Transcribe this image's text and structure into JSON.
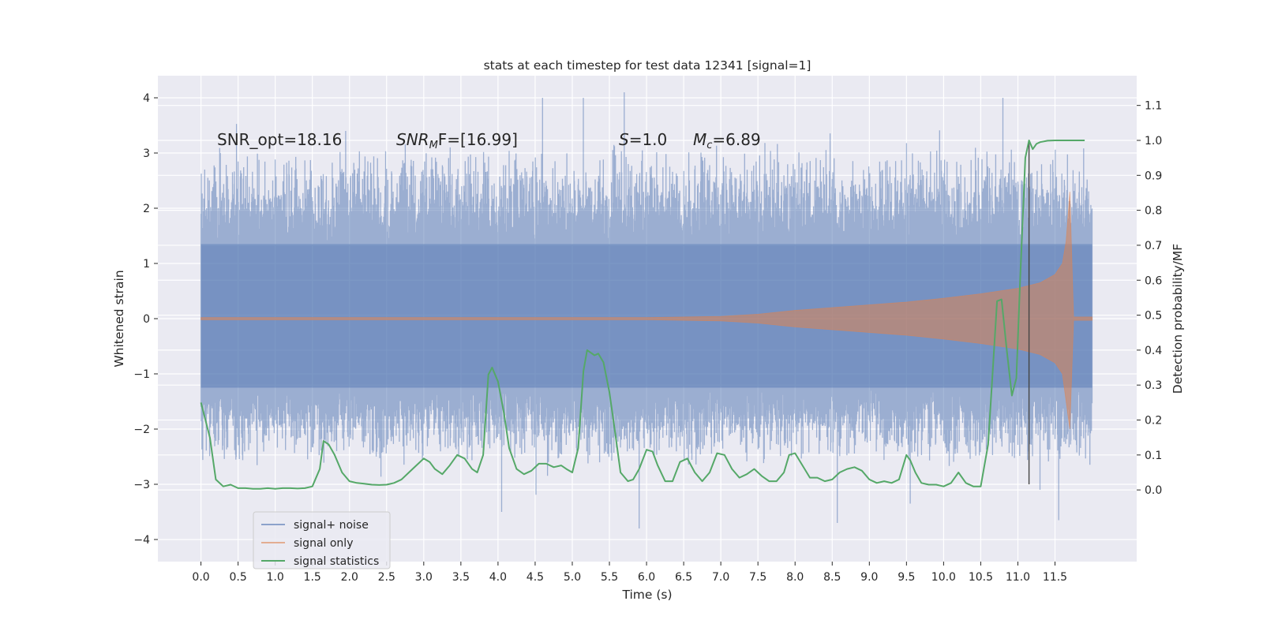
{
  "chart_data": {
    "type": "line",
    "title": "stats at each timestep for test data 12341 [signal=1]",
    "xlabel": "Time (s)",
    "ylabel": "Whitened strain",
    "ylabel_right": "Detection probability/MF",
    "xlim": [
      -0.58,
      12.6
    ],
    "ylim": [
      -4.4,
      4.4
    ],
    "ylim_right": [
      -0.205,
      1.185
    ],
    "x_ticks": [
      0.0,
      0.5,
      1.0,
      1.5,
      2.0,
      2.5,
      3.0,
      3.5,
      4.0,
      4.5,
      5.0,
      5.5,
      6.0,
      6.5,
      7.0,
      7.5,
      8.0,
      8.5,
      9.0,
      9.5,
      10.0,
      10.5,
      11.0,
      11.5
    ],
    "x_tick_labels": [
      "0.0",
      "0.5",
      "1.0",
      "1.5",
      "2.0",
      "2.5",
      "3.0",
      "3.5",
      "4.0",
      "4.5",
      "5.0",
      "5.5",
      "6.0",
      "6.5",
      "7.0",
      "7.5",
      "8.0",
      "8.5",
      "9.0",
      "9.5",
      "10.0",
      "10.5",
      "11.0",
      "11.5"
    ],
    "y_ticks": [
      -4,
      -3,
      -2,
      -1,
      0,
      1,
      2,
      3,
      4
    ],
    "y_tick_labels": [
      "−4",
      "−3",
      "−2",
      "−1",
      "0",
      "1",
      "2",
      "3",
      "4"
    ],
    "y_right_ticks": [
      0.0,
      0.1,
      0.2,
      0.3,
      0.4,
      0.5,
      0.6,
      0.7,
      0.8,
      0.9,
      1.0,
      1.1
    ],
    "y_right_tick_labels": [
      "0.0",
      "0.1",
      "0.2",
      "0.3",
      "0.4",
      "0.5",
      "0.6",
      "0.7",
      "0.8",
      "0.9",
      "1.0",
      "1.1"
    ],
    "grid": true,
    "background": "#eaeaf2",
    "legend": {
      "placement": "lower-left",
      "entries": [
        {
          "label": "signal+ noise",
          "color": "#4c72b0"
        },
        {
          "label": "signal only",
          "color": "#dd8452"
        },
        {
          "label": "signal statistics",
          "color": "#55a868"
        }
      ]
    },
    "annotations": {
      "snr_opt": "SNR_opt=18.16",
      "snr_mf_base": "SNR",
      "snr_mf_sub": "M",
      "snr_mf_tail": "F=[16.99]",
      "s_base": "S",
      "s_tail": "=1.0",
      "mc_base": "M",
      "mc_sub": "c",
      "mc_tail": "=6.89"
    },
    "vline": {
      "x": 11.15,
      "y_top": 3.2,
      "y_bottom": -3.0,
      "color": "#444444"
    },
    "series": [
      {
        "name": "signal+ noise",
        "color": "#4c72b0",
        "x_range": [
          0.0,
          12.0
        ],
        "core_band": [
          -1.25,
          1.35
        ],
        "typical_peak_range": [
          -2.7,
          3.2
        ],
        "max_value": 4.1,
        "min_value": -3.8,
        "note_values": [
          [
            0.05,
            2.7
          ],
          [
            1.95,
            3.4
          ],
          [
            4.6,
            4.0
          ],
          [
            5.15,
            4.0
          ],
          [
            5.7,
            4.1
          ],
          [
            10.8,
            4.0
          ],
          [
            8.57,
            -3.7
          ],
          [
            9.55,
            -3.35
          ],
          [
            11.55,
            -3.65
          ],
          [
            11.3,
            -3.1
          ],
          [
            5.9,
            -3.8
          ],
          [
            4.05,
            -3.5
          ]
        ]
      },
      {
        "name": "signal only",
        "color": "#dd8452",
        "x": [
          0.0,
          6.0,
          7.0,
          7.5,
          8.0,
          8.5,
          9.0,
          9.5,
          10.0,
          10.5,
          11.0,
          11.3,
          11.5,
          11.6,
          11.65,
          11.7,
          11.75,
          12.0
        ],
        "upper": [
          0.02,
          0.02,
          0.04,
          0.08,
          0.15,
          0.2,
          0.25,
          0.3,
          0.37,
          0.45,
          0.55,
          0.65,
          0.8,
          1.0,
          1.4,
          2.3,
          0.03,
          0.03
        ],
        "lower": [
          -0.02,
          -0.02,
          -0.04,
          -0.08,
          -0.15,
          -0.2,
          -0.25,
          -0.3,
          -0.37,
          -0.45,
          -0.55,
          -0.65,
          -0.8,
          -1.0,
          -1.5,
          -2.0,
          -0.03,
          -0.03
        ]
      },
      {
        "name": "signal statistics",
        "color": "#55a868",
        "axis": "right",
        "x": [
          0.0,
          0.12,
          0.2,
          0.3,
          0.4,
          0.5,
          0.6,
          0.7,
          0.8,
          0.9,
          1.0,
          1.1,
          1.2,
          1.3,
          1.4,
          1.5,
          1.6,
          1.65,
          1.72,
          1.8,
          1.9,
          2.0,
          2.1,
          2.2,
          2.3,
          2.4,
          2.5,
          2.6,
          2.7,
          2.8,
          2.9,
          3.0,
          3.08,
          3.15,
          3.25,
          3.35,
          3.45,
          3.55,
          3.65,
          3.72,
          3.8,
          3.87,
          3.92,
          4.0,
          4.08,
          4.15,
          4.25,
          4.35,
          4.45,
          4.55,
          4.65,
          4.75,
          4.85,
          4.92,
          5.0,
          5.08,
          5.15,
          5.2,
          5.3,
          5.35,
          5.42,
          5.5,
          5.58,
          5.65,
          5.75,
          5.82,
          5.9,
          6.0,
          6.08,
          6.15,
          6.25,
          6.35,
          6.45,
          6.55,
          6.65,
          6.75,
          6.85,
          6.95,
          7.05,
          7.15,
          7.25,
          7.35,
          7.45,
          7.55,
          7.65,
          7.75,
          7.85,
          7.92,
          8.0,
          8.1,
          8.2,
          8.3,
          8.4,
          8.5,
          8.6,
          8.7,
          8.8,
          8.9,
          9.0,
          9.1,
          9.2,
          9.3,
          9.4,
          9.5,
          9.55,
          9.62,
          9.7,
          9.8,
          9.9,
          10.0,
          10.1,
          10.2,
          10.3,
          10.4,
          10.5,
          10.6,
          10.65,
          10.72,
          10.78,
          10.85,
          10.92,
          10.98,
          11.03,
          11.1,
          11.15,
          11.2,
          11.25,
          11.3,
          11.4,
          11.5,
          11.6,
          11.75,
          11.9
        ],
        "values": [
          0.25,
          0.15,
          0.03,
          0.01,
          0.015,
          0.005,
          0.005,
          0.003,
          0.003,
          0.005,
          0.003,
          0.005,
          0.005,
          0.004,
          0.005,
          0.01,
          0.06,
          0.14,
          0.13,
          0.1,
          0.05,
          0.025,
          0.02,
          0.018,
          0.015,
          0.014,
          0.015,
          0.02,
          0.03,
          0.05,
          0.07,
          0.09,
          0.08,
          0.06,
          0.045,
          0.07,
          0.1,
          0.09,
          0.06,
          0.05,
          0.1,
          0.33,
          0.35,
          0.31,
          0.22,
          0.12,
          0.06,
          0.045,
          0.055,
          0.075,
          0.075,
          0.065,
          0.07,
          0.06,
          0.05,
          0.12,
          0.34,
          0.4,
          0.385,
          0.39,
          0.365,
          0.28,
          0.16,
          0.05,
          0.025,
          0.03,
          0.06,
          0.115,
          0.11,
          0.07,
          0.025,
          0.025,
          0.08,
          0.09,
          0.05,
          0.025,
          0.05,
          0.105,
          0.1,
          0.06,
          0.035,
          0.045,
          0.06,
          0.04,
          0.025,
          0.025,
          0.05,
          0.1,
          0.105,
          0.07,
          0.035,
          0.035,
          0.025,
          0.03,
          0.05,
          0.06,
          0.065,
          0.055,
          0.03,
          0.02,
          0.025,
          0.02,
          0.03,
          0.1,
          0.085,
          0.05,
          0.02,
          0.015,
          0.015,
          0.01,
          0.02,
          0.05,
          0.02,
          0.01,
          0.01,
          0.13,
          0.3,
          0.54,
          0.545,
          0.4,
          0.27,
          0.32,
          0.6,
          0.95,
          1.0,
          0.975,
          0.99,
          0.995,
          0.999,
          1.0,
          1.0,
          1.0,
          1.0
        ]
      }
    ]
  }
}
